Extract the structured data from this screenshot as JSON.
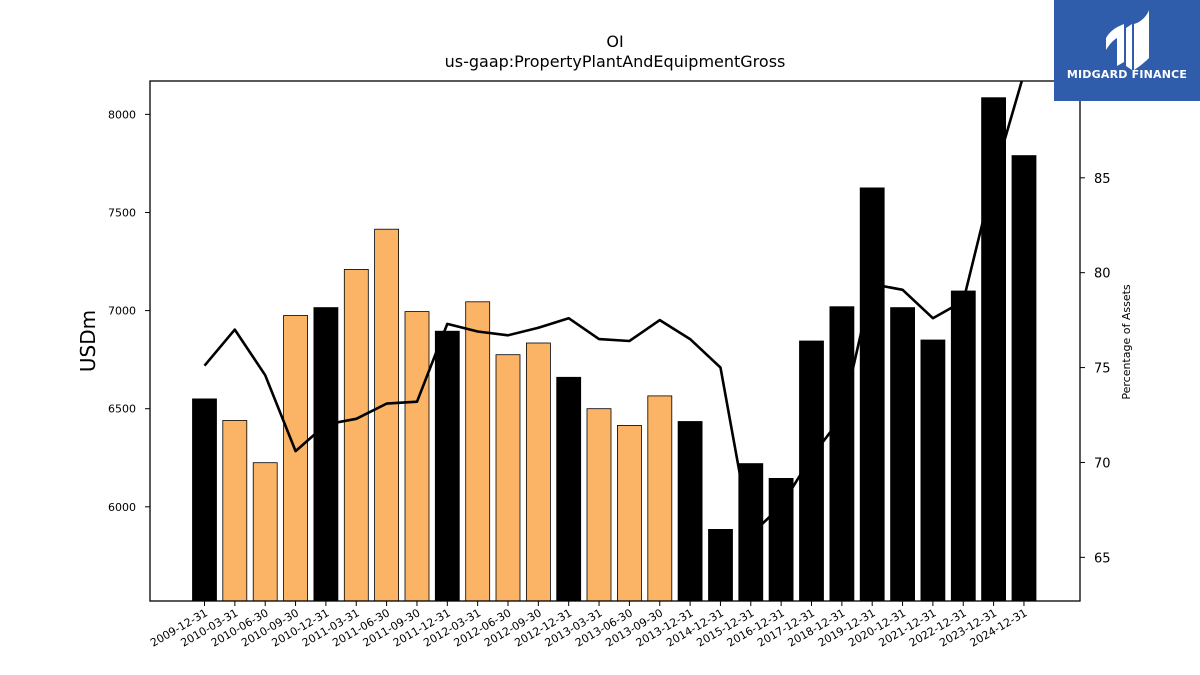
{
  "header": {
    "title": "OI",
    "subtitle": "us-gaap:PropertyPlantAndEquipmentGross"
  },
  "logo": {
    "text": "MIDGARD FINANCE",
    "icon": "midgard-logo-icon",
    "background": "#2f5cab"
  },
  "colors": {
    "annual_bar": "#000000",
    "quarterly_bar": "#fbb365",
    "line": "#000000"
  },
  "chart_data": {
    "type": "bar",
    "title": "OI",
    "subtitle": "us-gaap:PropertyPlantAndEquipmentGross",
    "ylabel": "USDm",
    "y2label": "Percentage of Assets",
    "ylim": [
      5520,
      8170
    ],
    "y2lim": [
      62.7,
      90.1
    ],
    "yticks": [
      6000,
      6500,
      7000,
      7500,
      8000
    ],
    "y2ticks": [
      65,
      70,
      75,
      80,
      85
    ],
    "grid": false,
    "categories": [
      "2009-12-31",
      "2010-03-31",
      "2010-06-30",
      "2010-09-30",
      "2010-12-31",
      "2011-03-31",
      "2011-06-30",
      "2011-09-30",
      "2011-12-31",
      "2012-03-31",
      "2012-06-30",
      "2012-09-30",
      "2012-12-31",
      "2013-03-31",
      "2013-06-30",
      "2013-09-30",
      "2013-12-31",
      "2014-12-31",
      "2015-12-31",
      "2016-12-31",
      "2017-12-31",
      "2018-12-31",
      "2019-12-31",
      "2020-12-31",
      "2021-12-31",
      "2022-12-31",
      "2023-12-31",
      "2024-12-31"
    ],
    "series": [
      {
        "type": "bar",
        "values": [
          6550,
          6440,
          6225,
          6975,
          7015,
          7210,
          7415,
          6995,
          6895,
          7045,
          6775,
          6835,
          6660,
          6500,
          6415,
          6565,
          6435,
          5885,
          6220,
          6145,
          6845,
          7020,
          7625,
          7015,
          6850,
          7100,
          8085,
          7790
        ],
        "period": [
          "annual",
          "quarterly",
          "quarterly",
          "quarterly",
          "annual",
          "quarterly",
          "quarterly",
          "quarterly",
          "annual",
          "quarterly",
          "quarterly",
          "quarterly",
          "annual",
          "quarterly",
          "quarterly",
          "quarterly",
          "annual",
          "annual",
          "annual",
          "annual",
          "annual",
          "annual",
          "annual",
          "annual",
          "annual",
          "annual",
          "annual",
          "annual"
        ]
      },
      {
        "type": "line",
        "axis": "secondary",
        "values": [
          75.1,
          77.0,
          74.6,
          70.6,
          72.0,
          72.3,
          73.1,
          73.2,
          77.3,
          76.9,
          76.7,
          77.1,
          77.6,
          76.5,
          76.4,
          77.5,
          76.5,
          75.0,
          66.2,
          67.7,
          70.3,
          72.4,
          79.4,
          79.1,
          77.6,
          78.5,
          85.0,
          90.5
        ]
      }
    ]
  }
}
